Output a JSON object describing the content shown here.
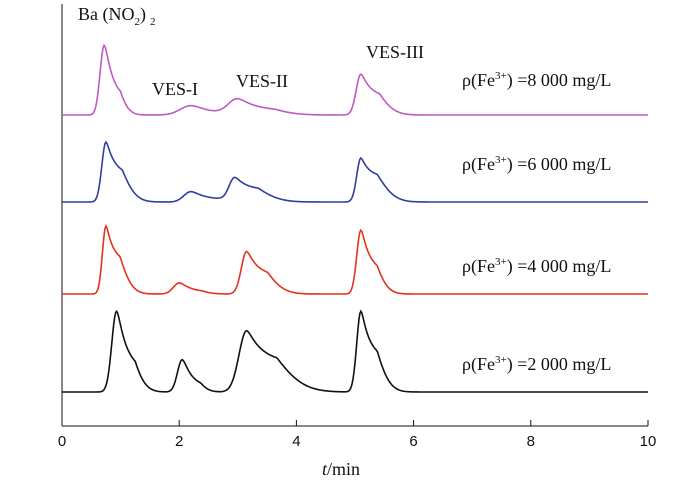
{
  "chart_data": {
    "type": "line",
    "title": "",
    "xlabel_var": "t",
    "xlabel_unit": "/min",
    "ylabel": "",
    "xlim": [
      0,
      10
    ],
    "xticks": [
      "0",
      "2",
      "4",
      "6",
      "8",
      "10"
    ],
    "grid": false,
    "annotations": {
      "ba": "Ba (NO",
      "ba_sub": "2",
      "ba_close": ")",
      "ba_sub2": "2",
      "ves1": "VES-I",
      "ves2": "VES-II",
      "ves3": "VES-III"
    },
    "series": [
      {
        "color": "#c05ac0",
        "label_prefix": "ρ(Fe",
        "label_sup": "3+",
        "label_suffix": ") =8 000 mg/L",
        "baseline": 0.03,
        "peaks": [
          {
            "x": 0.72,
            "h": 0.82,
            "w": 0.07,
            "tail": 0.12
          },
          {
            "x": 2.2,
            "h": 0.11,
            "w": 0.18,
            "tail": 0.2
          },
          {
            "x": 3.0,
            "h": 0.18,
            "w": 0.16,
            "tail": 0.3
          },
          {
            "x": 5.1,
            "h": 0.48,
            "w": 0.08,
            "tail": 0.2
          }
        ]
      },
      {
        "color": "#2e3f9e",
        "label_prefix": "ρ(Fe",
        "label_sup": "3+",
        "label_suffix": ") =6 000 mg/L",
        "baseline": 0.03,
        "peaks": [
          {
            "x": 0.75,
            "h": 0.75,
            "w": 0.07,
            "tail": 0.18
          },
          {
            "x": 2.2,
            "h": 0.13,
            "w": 0.12,
            "tail": 0.2
          },
          {
            "x": 2.95,
            "h": 0.3,
            "w": 0.1,
            "tail": 0.28
          },
          {
            "x": 5.1,
            "h": 0.55,
            "w": 0.07,
            "tail": 0.22
          }
        ]
      },
      {
        "color": "#e4321e",
        "label_prefix": "ρ(Fe",
        "label_sup": "3+",
        "label_suffix": ") =4 000 mg/L",
        "baseline": 0.04,
        "peaks": [
          {
            "x": 0.75,
            "h": 0.8,
            "w": 0.06,
            "tail": 0.16
          },
          {
            "x": 2.0,
            "h": 0.13,
            "w": 0.1,
            "tail": 0.15
          },
          {
            "x": 3.15,
            "h": 0.5,
            "w": 0.09,
            "tail": 0.22
          },
          {
            "x": 5.1,
            "h": 0.75,
            "w": 0.07,
            "tail": 0.15
          }
        ]
      },
      {
        "color": "#111111",
        "label_prefix": "ρ(Fe",
        "label_sup": "3+",
        "label_suffix": ") =2 000 mg/L",
        "baseline": 0.05,
        "peaks": [
          {
            "x": 0.93,
            "h": 0.95,
            "w": 0.08,
            "tail": 0.15
          },
          {
            "x": 2.05,
            "h": 0.38,
            "w": 0.08,
            "tail": 0.12
          },
          {
            "x": 3.15,
            "h": 0.72,
            "w": 0.13,
            "tail": 0.35
          },
          {
            "x": 5.1,
            "h": 0.95,
            "w": 0.07,
            "tail": 0.17
          }
        ]
      }
    ]
  }
}
